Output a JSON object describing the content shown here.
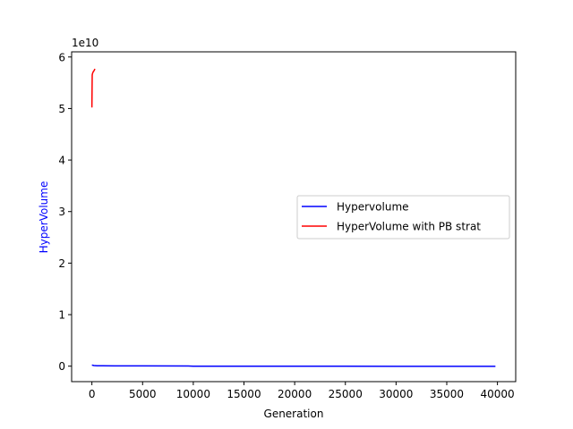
{
  "chart_data": {
    "type": "line",
    "title": "",
    "xlabel": "Generation",
    "ylabel": "HyperVolume",
    "ylabel_color": "#0000ff",
    "y_offset_label": "1e10",
    "xlim": [
      -2000,
      41800
    ],
    "ylim": [
      -0.3,
      6.1
    ],
    "xticks": [
      0,
      5000,
      10000,
      15000,
      20000,
      25000,
      30000,
      35000,
      40000
    ],
    "yticks": [
      0,
      1,
      2,
      3,
      4,
      5,
      6
    ],
    "grid": false,
    "legend_placement": "center-right",
    "series": [
      {
        "name": "Hypervolume",
        "color": "#0000ff",
        "x": [
          0,
          200,
          500,
          1000,
          5000,
          9500,
          10000,
          20000,
          30000,
          39800
        ],
        "y": [
          0.022,
          0.012,
          0.008,
          0.007,
          0.005,
          0.003,
          0.0,
          0.0,
          -0.002,
          -0.003
        ]
      },
      {
        "name": "HyperVolume with PB strat",
        "color": "#ff0000",
        "x": [
          0,
          30,
          60,
          100,
          150,
          200,
          250,
          300
        ],
        "y": [
          5.02,
          5.65,
          5.68,
          5.7,
          5.72,
          5.73,
          5.75,
          5.77
        ]
      }
    ]
  }
}
